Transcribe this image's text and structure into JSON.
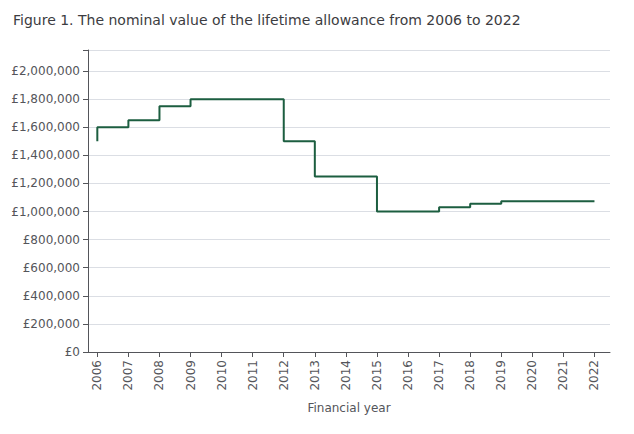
{
  "chart_data": {
    "type": "step",
    "title": "Figure 1. The nominal value of the lifetime allowance from 2006 to 2022",
    "xlabel": "Financial year",
    "x": [
      2006,
      2007,
      2008,
      2009,
      2010,
      2011,
      2012,
      2013,
      2014,
      2015,
      2016,
      2017,
      2018,
      2019,
      2020,
      2021,
      2022
    ],
    "values": [
      1500000,
      1600000,
      1650000,
      1750000,
      1800000,
      1800000,
      1800000,
      1500000,
      1250000,
      1250000,
      1000000,
      1000000,
      1030000,
      1055000,
      1073100,
      1073100,
      1073100
    ],
    "color": "#1c5e40",
    "xlim": [
      2005.7,
      2022.5
    ],
    "xticks": [
      2006,
      2007,
      2008,
      2009,
      2010,
      2011,
      2012,
      2013,
      2014,
      2015,
      2016,
      2017,
      2018,
      2019,
      2020,
      2021,
      2022
    ],
    "ylim": [
      0,
      2150000
    ],
    "yticks": [
      {
        "value": 0,
        "label": "£0"
      },
      {
        "value": 200000,
        "label": "£200,000"
      },
      {
        "value": 400000,
        "label": "£400,000"
      },
      {
        "value": 600000,
        "label": "£600,000"
      },
      {
        "value": 800000,
        "label": "£800,000"
      },
      {
        "value": 1000000,
        "label": "£1,000,000"
      },
      {
        "value": 1200000,
        "label": "£1,200,000"
      },
      {
        "value": 1400000,
        "label": "£1,400,000"
      },
      {
        "value": 1600000,
        "label": "£1,600,000"
      },
      {
        "value": 1800000,
        "label": "£1,800,000"
      },
      {
        "value": 2000000,
        "label": "£2,000,000"
      }
    ],
    "grid": true
  }
}
